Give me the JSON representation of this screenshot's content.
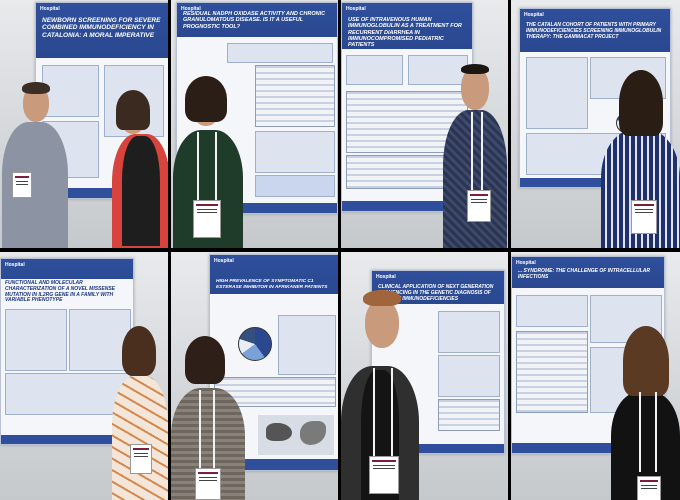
{
  "posters": [
    {
      "header": "Hospital",
      "title": "Newborn screening for Severe Combined Immunodeficiency in Catalonia: A moral imperative"
    },
    {
      "header": "Hospital",
      "title": "Residual NADPH oxidase activity and chronic granulomatous disease. Is it a useful prognostic tool?"
    },
    {
      "header": "Hospital",
      "title": "Use of intravenous human immunoglobulin as a treatment for recurrent diarrhea in immunocompromised pediatric patients"
    },
    {
      "header": "Hospital",
      "title": "The Catalan cohort of patients with primary immunodeficiencies screening immunoglobulin therapy: The GammaCat Project"
    },
    {
      "header": "Hospital",
      "title": "Functional and molecular characterization of a novel missense mutation in IL2RG gene in a family with variable phenotype"
    },
    {
      "header": "Hospital",
      "title": "High prevalence of symptomatic C1 esterase inhibitor in Afrikaner patients"
    },
    {
      "header": "Hospital",
      "title": "Clinical application of next generation sequencing in the genetic diagnosis of primary immunodeficiencies"
    },
    {
      "header": "Hospital",
      "title": "... syndrome: the challenge of intracellular infections"
    }
  ]
}
